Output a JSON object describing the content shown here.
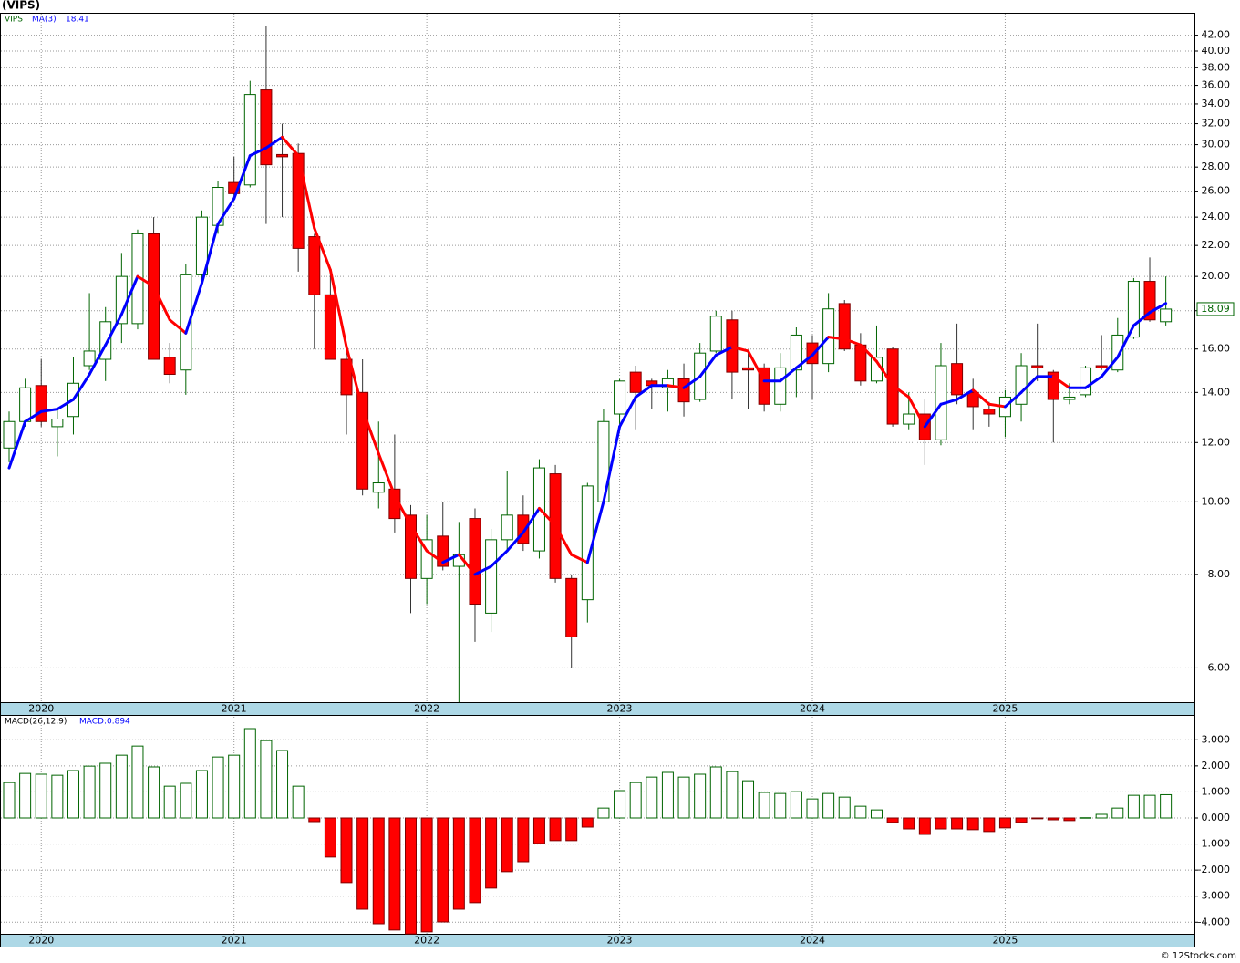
{
  "chart_data": {
    "type": "candlestick",
    "title": "(VIPS)",
    "symbol": "VIPS",
    "categories": [
      null,
      null,
      "2020",
      null,
      null,
      null,
      null,
      null,
      null,
      null,
      null,
      null,
      null,
      null,
      "2021",
      null,
      null,
      null,
      null,
      null,
      null,
      null,
      null,
      null,
      null,
      null,
      "2022",
      null,
      null,
      null,
      null,
      null,
      null,
      null,
      null,
      null,
      null,
      null,
      "2023",
      null,
      null,
      null,
      null,
      null,
      null,
      null,
      null,
      null,
      null,
      null,
      "2024",
      null,
      null,
      null,
      null,
      null,
      null,
      null,
      null,
      null,
      null,
      null,
      "2025",
      null,
      null,
      null,
      null,
      null,
      null,
      null,
      null,
      null,
      null
    ],
    "open": [
      11.8,
      12.8,
      14.3,
      12.6,
      13.0,
      15.2,
      15.5,
      17.3,
      17.3,
      22.8,
      15.6,
      15.0,
      20.1,
      23.4,
      26.7,
      26.5,
      35.5,
      29.1,
      29.2,
      22.6,
      18.9,
      15.5,
      14.0,
      10.3,
      10.4,
      9.6,
      7.9,
      9.0,
      8.2,
      9.5,
      7.1,
      8.9,
      9.6,
      8.6,
      10.9,
      7.9,
      7.4,
      10.0,
      13.1,
      14.9,
      14.5,
      14.2,
      14.6,
      13.7,
      15.9,
      17.5,
      15.1,
      15.1,
      13.5,
      15.0,
      16.3,
      15.3,
      18.4,
      16.2,
      14.5,
      16.0,
      12.7,
      13.1,
      12.1,
      15.3,
      14.0,
      13.3,
      13.0,
      13.5,
      15.2,
      14.9,
      13.7,
      13.9,
      15.2,
      15.0,
      16.6,
      19.7,
      17.4
    ],
    "high": [
      13.2,
      14.6,
      15.5,
      13.3,
      15.6,
      19.0,
      18.2,
      21.5,
      23.1,
      24.0,
      16.3,
      20.8,
      24.5,
      26.8,
      28.9,
      36.5,
      43.2,
      32.0,
      30.1,
      22.8,
      20.4,
      16.0,
      15.5,
      12.8,
      12.3,
      9.9,
      9.6,
      10.0,
      9.4,
      9.8,
      9.2,
      11.0,
      10.2,
      11.4,
      11.2,
      8.0,
      10.6,
      13.3,
      14.6,
      15.2,
      14.6,
      15.0,
      15.3,
      16.3,
      18.0,
      18.0,
      15.8,
      15.3,
      15.8,
      17.1,
      16.7,
      19.0,
      18.6,
      16.8,
      17.2,
      16.1,
      14.0,
      13.7,
      16.3,
      17.3,
      14.6,
      13.6,
      14.1,
      15.8,
      17.3,
      15.0,
      14.4,
      15.2,
      16.7,
      17.6,
      19.9,
      21.2,
      20.0
    ],
    "low": [
      11.3,
      12.6,
      12.6,
      11.5,
      12.3,
      15.0,
      14.5,
      16.3,
      17.0,
      15.5,
      14.4,
      13.9,
      19.8,
      22.8,
      25.6,
      26.3,
      23.5,
      24.0,
      20.3,
      16.0,
      15.5,
      12.3,
      10.2,
      9.8,
      9.1,
      7.1,
      7.3,
      8.1,
      5.4,
      6.5,
      6.7,
      8.6,
      8.6,
      8.4,
      7.8,
      6.0,
      6.9,
      9.9,
      12.7,
      12.5,
      13.3,
      13.2,
      13.0,
      13.6,
      15.8,
      13.7,
      13.3,
      13.2,
      13.2,
      13.8,
      13.7,
      14.9,
      15.9,
      14.3,
      14.4,
      12.6,
      12.5,
      11.2,
      11.9,
      13.5,
      12.5,
      12.6,
      12.2,
      12.8,
      14.5,
      12.0,
      13.5,
      13.8,
      15.0,
      14.9,
      16.5,
      17.4,
      17.2
    ],
    "close": [
      12.8,
      14.2,
      12.8,
      12.9,
      14.4,
      15.9,
      17.4,
      20.0,
      22.8,
      15.5,
      14.8,
      20.1,
      24.0,
      26.3,
      25.8,
      35.0,
      28.2,
      28.9,
      21.8,
      18.9,
      15.5,
      13.9,
      10.4,
      10.6,
      9.5,
      7.9,
      8.9,
      8.2,
      8.5,
      7.3,
      8.9,
      9.6,
      8.8,
      11.1,
      7.9,
      6.6,
      10.5,
      12.8,
      14.5,
      14.0,
      14.3,
      14.6,
      13.6,
      15.8,
      17.7,
      14.9,
      15.0,
      13.5,
      15.1,
      16.7,
      15.3,
      18.1,
      16.0,
      14.5,
      15.6,
      12.7,
      13.1,
      12.1,
      15.2,
      13.9,
      13.4,
      13.1,
      13.8,
      15.2,
      15.1,
      13.7,
      13.8,
      15.1,
      15.1,
      16.7,
      19.7,
      17.5,
      18.09
    ],
    "up_color": "#006400",
    "down_color": "#ff0000",
    "ma": {
      "name": "MA(3)",
      "up_color": "#0000ff",
      "down_color": "#ff0000",
      "values": [
        11.1,
        12.8,
        13.2,
        13.3,
        13.7,
        14.8,
        16.2,
        17.8,
        20.0,
        19.4,
        17.5,
        16.8,
        19.6,
        23.5,
        25.4,
        29.0,
        29.7,
        30.7,
        29.0,
        23.2,
        20.4,
        16.1,
        13.3,
        11.6,
        10.2,
        9.3,
        8.6,
        8.3,
        8.5,
        8.0,
        8.2,
        8.6,
        9.1,
        9.8,
        9.3,
        8.5,
        8.3,
        10.0,
        12.6,
        13.8,
        14.3,
        14.3,
        14.2,
        14.7,
        15.7,
        16.1,
        15.9,
        14.5,
        14.5,
        15.1,
        15.7,
        16.6,
        16.5,
        16.2,
        15.4,
        14.3,
        13.8,
        12.6,
        13.5,
        13.7,
        14.1,
        13.5,
        13.4,
        14.0,
        14.7,
        14.7,
        14.2,
        14.2,
        14.7,
        15.6,
        17.2,
        17.9,
        18.41
      ]
    },
    "log_scale": true,
    "grid": true,
    "ylim": [
      5.4,
      45
    ],
    "yticks": [
      {
        "value": 6,
        "label": "6.00"
      },
      {
        "value": 8,
        "label": "8.00"
      },
      {
        "value": 10,
        "label": "10.00"
      },
      {
        "value": 12,
        "label": "12.00"
      },
      {
        "value": 14,
        "label": "14.00"
      },
      {
        "value": 16,
        "label": "16.00"
      },
      {
        "value": 18,
        "label": "18.00"
      },
      {
        "value": 20,
        "label": "20.00"
      },
      {
        "value": 22,
        "label": "22.00"
      },
      {
        "value": 24,
        "label": "24.00"
      },
      {
        "value": 26,
        "label": "26.00"
      },
      {
        "value": 28,
        "label": "28.00"
      },
      {
        "value": 30,
        "label": "30.00"
      },
      {
        "value": 32,
        "label": "32.00"
      },
      {
        "value": 34,
        "label": "34.00"
      },
      {
        "value": 36,
        "label": "36.00"
      },
      {
        "value": 38,
        "label": "38.00"
      },
      {
        "value": 40,
        "label": "40.00"
      },
      {
        "value": 42,
        "label": "42.00"
      }
    ],
    "macd": {
      "type": "bar",
      "title": "MACD(26,12,9)",
      "label": "MACD:0.894",
      "pos_color": "#006400",
      "neg_color": "#ff0000",
      "values": [
        1.36,
        1.71,
        1.68,
        1.64,
        1.82,
        1.99,
        2.1,
        2.41,
        2.76,
        1.96,
        1.22,
        1.33,
        1.82,
        2.34,
        2.41,
        3.43,
        2.97,
        2.59,
        1.22,
        -0.14,
        -1.5,
        -2.48,
        -3.5,
        -4.06,
        -4.3,
        -4.45,
        -4.37,
        -3.99,
        -3.5,
        -3.25,
        -2.69,
        -2.06,
        -1.68,
        -0.98,
        -0.87,
        -0.87,
        -0.35,
        0.38,
        1.05,
        1.36,
        1.57,
        1.75,
        1.57,
        1.68,
        1.96,
        1.78,
        1.43,
        0.98,
        0.94,
        1.01,
        0.73,
        0.94,
        0.8,
        0.45,
        0.31,
        -0.17,
        -0.42,
        -0.63,
        -0.42,
        -0.42,
        -0.45,
        -0.52,
        -0.38,
        -0.17,
        -0.03,
        -0.07,
        -0.1,
        0.01,
        0.14,
        0.38,
        0.87,
        0.87,
        0.894
      ],
      "ylim": [
        -4.48,
        3.92
      ],
      "yticks": [
        {
          "value": 3,
          "label": "3.000"
        },
        {
          "value": 2,
          "label": "2.000"
        },
        {
          "value": 1,
          "label": "1.000"
        },
        {
          "value": 0,
          "label": "0.000"
        },
        {
          "value": -1,
          "label": "-1.000"
        },
        {
          "value": -2,
          "label": "-2.000"
        },
        {
          "value": -3,
          "label": "-3.000"
        },
        {
          "value": -4,
          "label": "-4.000"
        }
      ]
    },
    "footer": "© 12Stocks.com"
  }
}
